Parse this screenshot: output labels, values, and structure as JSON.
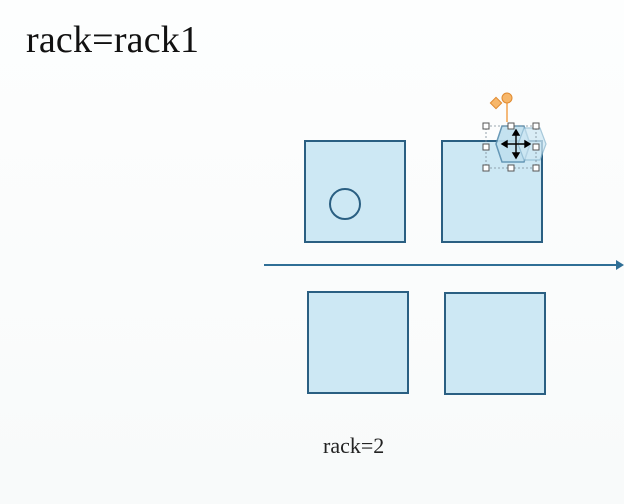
{
  "slide": {
    "title": "rack=rack1",
    "caption": "rack=2"
  },
  "colors": {
    "box_fill": "#cde8f4",
    "box_border": "#2a5f82",
    "line": "#2f6f96",
    "rotate_handle": "#f2a24e"
  },
  "icons": {
    "move_cursor": "move-cursor-icon",
    "rotate_handle": "rotate-handle-icon"
  }
}
